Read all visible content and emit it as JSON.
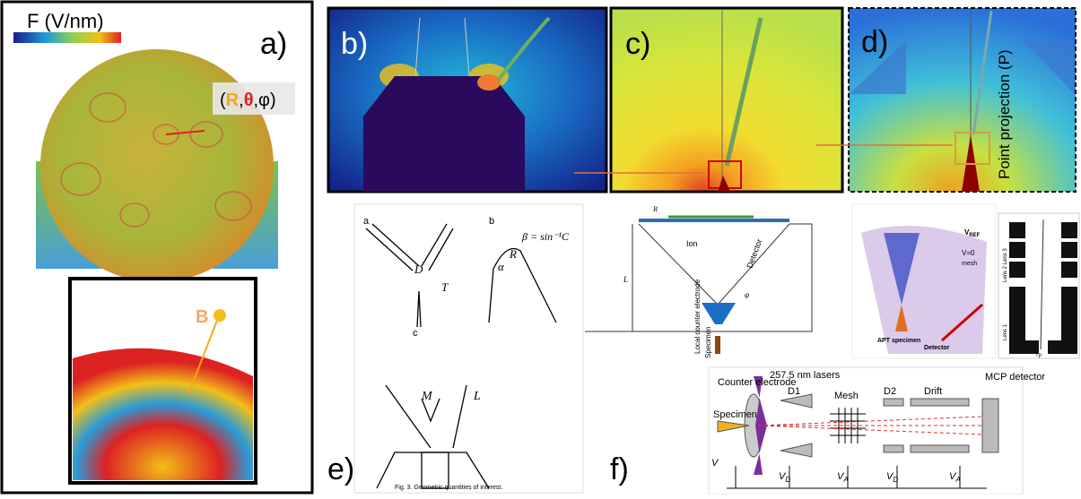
{
  "panel_a": {
    "colorbar_label": "F (V/nm)",
    "label": "a)",
    "coords": [
      "(",
      "R",
      ",",
      "θ",
      ",φ)"
    ],
    "inset_label": "B"
  },
  "panel_b": {
    "label": "b)"
  },
  "panel_c": {
    "label": "c)"
  },
  "panel_d": {
    "label": "d)",
    "annotation": "Point projection (P)"
  },
  "panel_e": {
    "label": "e)",
    "sub_labels": [
      "a",
      "b",
      "c"
    ],
    "symbols": [
      "D",
      "T",
      "R",
      "α",
      "β = sin⁻¹C",
      "M",
      "L"
    ],
    "caption": "Fig. 3. Geometric quantities of interest."
  },
  "panel_f": {
    "label": "f)",
    "geometry": [
      "R",
      "Ion",
      "Detector",
      "L",
      "Local counter electrode",
      "Specimen",
      "φ"
    ],
    "apt": [
      "V",
      "REF",
      "V=0",
      "mesh",
      "APT specimen",
      "Detector"
    ],
    "lens": [
      "Lens 1",
      "Lens 2  Lens 3",
      "Tp"
    ],
    "setup": [
      "Counter electrode",
      "257.5 nm lasers",
      "D1",
      "Mesh",
      "D2",
      "Drift",
      "MCP detector",
      "Specimen"
    ],
    "voltages": [
      {
        "main": "V",
        "sub": ""
      },
      {
        "main": "V",
        "sub": "D"
      },
      {
        "main": "V",
        "sub": "A"
      },
      {
        "main": "V",
        "sub": "D"
      },
      {
        "main": "V",
        "sub": "A"
      }
    ]
  }
}
